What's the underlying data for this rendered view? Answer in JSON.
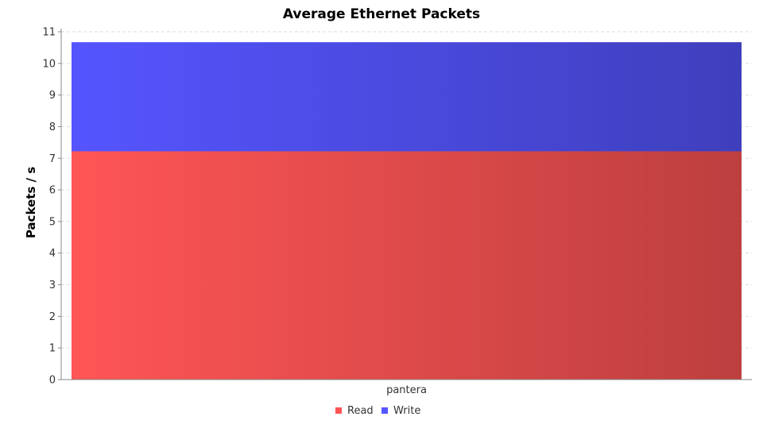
{
  "chart_data": {
    "type": "bar",
    "stacked": true,
    "title": "Average Ethernet Packets",
    "xlabel": "",
    "ylabel": "Packets / s",
    "categories": [
      "pantera"
    ],
    "series": [
      {
        "name": "Read",
        "values": [
          7.22
        ],
        "color": "#ff5555"
      },
      {
        "name": "Write",
        "values": [
          3.45
        ],
        "color": "#5555ff"
      }
    ],
    "ylim": [
      0,
      11
    ],
    "yticks": [
      0,
      1,
      2,
      3,
      4,
      5,
      6,
      7,
      8,
      9,
      10,
      11
    ],
    "grid": true,
    "legend": "bottom-center"
  }
}
